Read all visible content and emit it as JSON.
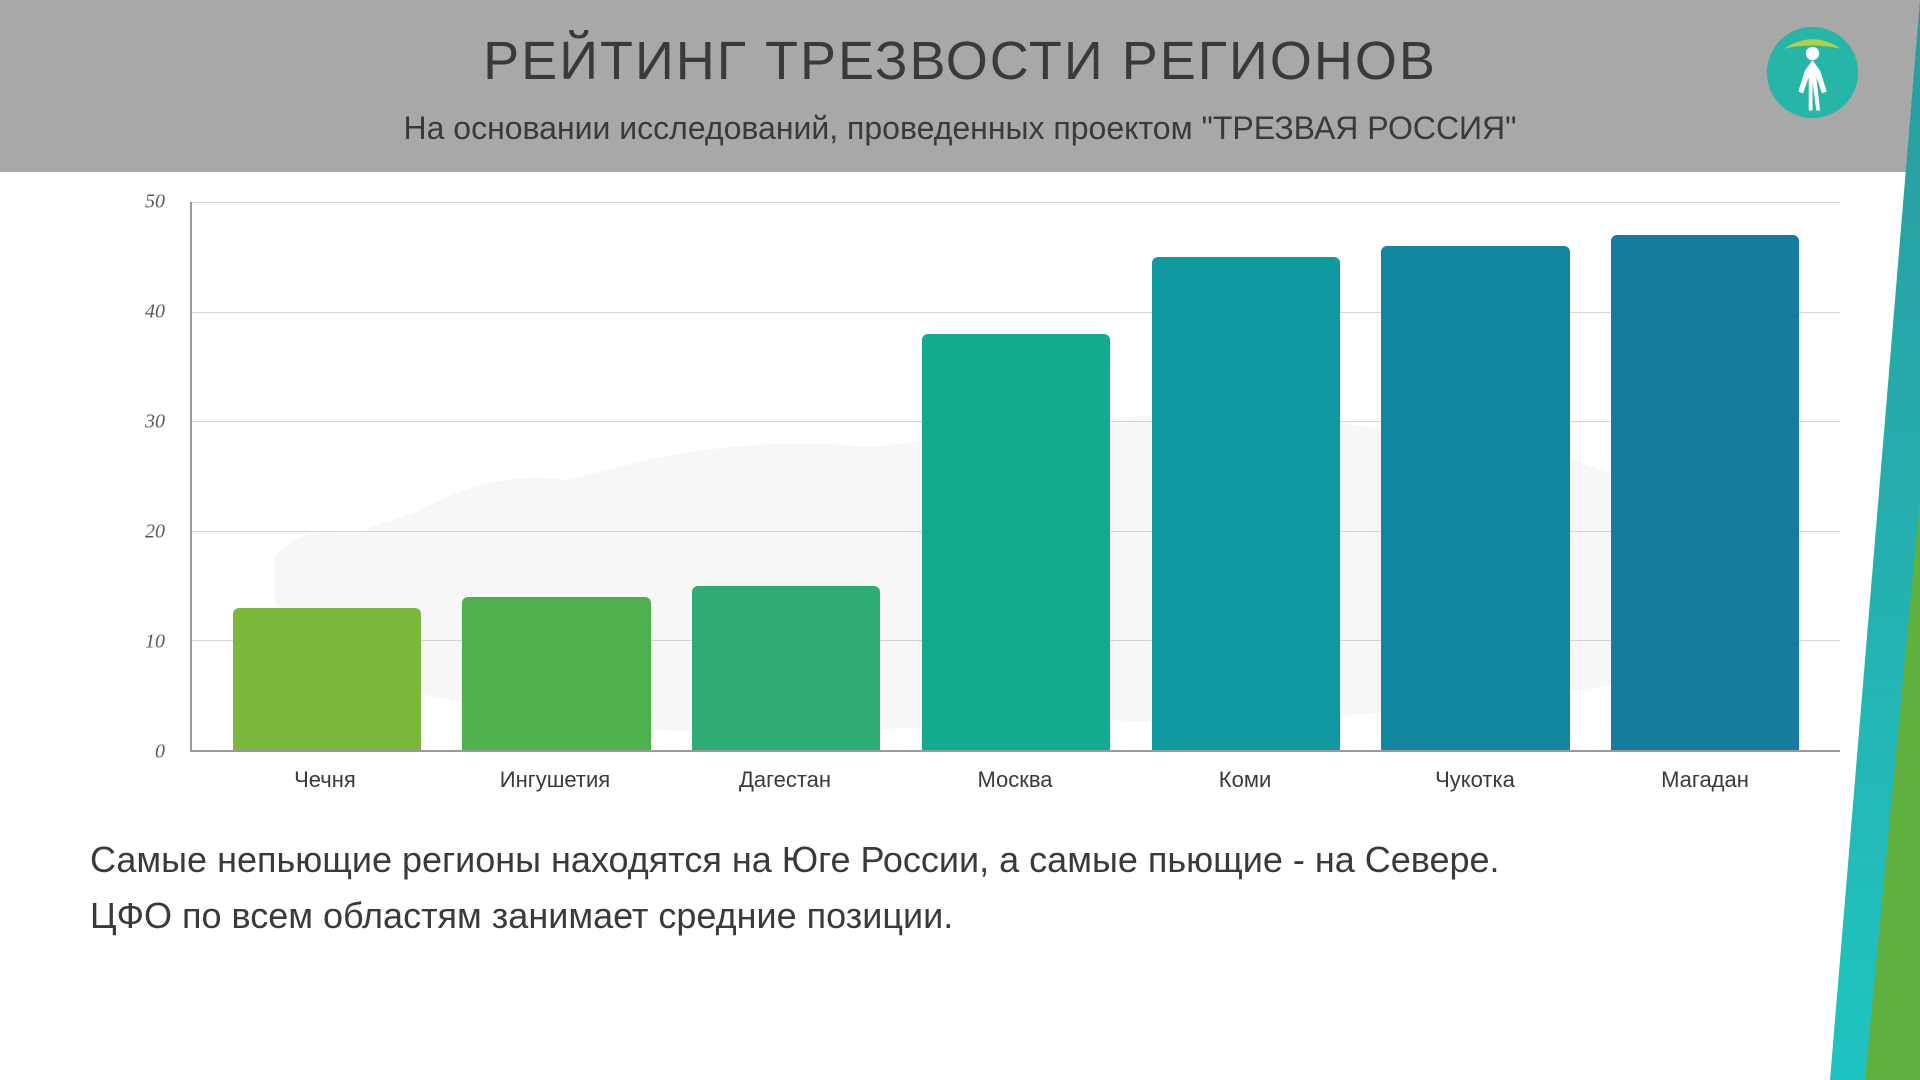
{
  "header": {
    "title": "РЕЙТИНГ ТРЕЗВОСТИ РЕГИОНОВ",
    "subtitle": "На основании исследований, проведенных проектом \"ТРЕЗВАЯ РОССИЯ\"",
    "background_color": "#a8a8a8",
    "title_color": "#3a3a3a",
    "title_fontsize": 54,
    "subtitle_fontsize": 32
  },
  "logo": {
    "circle_color": "#27b5a8",
    "top_crescent_color": "#b4cf3f",
    "figure_color": "#ffffff"
  },
  "chart": {
    "type": "bar",
    "categories": [
      "Чечня",
      "Ингушетия",
      "Дагестан",
      "Москва",
      "Коми",
      "Чукотка",
      "Магадан"
    ],
    "values": [
      13,
      14,
      15,
      38,
      45,
      46,
      47
    ],
    "bar_colors": [
      "#7cb83c",
      "#4eb14e",
      "#2fac74",
      "#13ab8f",
      "#0f9aa0",
      "#13869f",
      "#177b9d"
    ],
    "ylim": [
      0,
      50
    ],
    "ytick_step": 10,
    "yticks": [
      0,
      10,
      20,
      30,
      40,
      50
    ],
    "grid_color": "#d5d5d5",
    "axis_color": "#999999",
    "bar_border_radius": "6px 6px 0 0",
    "bar_width_pct": 82,
    "x_label_fontsize": 22,
    "y_label_fontsize": 20,
    "y_label_font": "Georgia, serif",
    "map_silhouette_color": "#cccccc",
    "map_opacity": 0.15
  },
  "caption": {
    "line1": "Самые непьющие регионы находятся на Юге России, а самые пьющие - на Севере.",
    "line2": "ЦФО по всем областям занимает средние позиции.",
    "fontsize": 36,
    "color": "#3a3a3a"
  },
  "accents": {
    "teal_gradient_from": "#2b9b9e",
    "teal_gradient_to": "#1fc4c0",
    "green_color": "#5fb03e"
  },
  "background_color": "#ffffff"
}
